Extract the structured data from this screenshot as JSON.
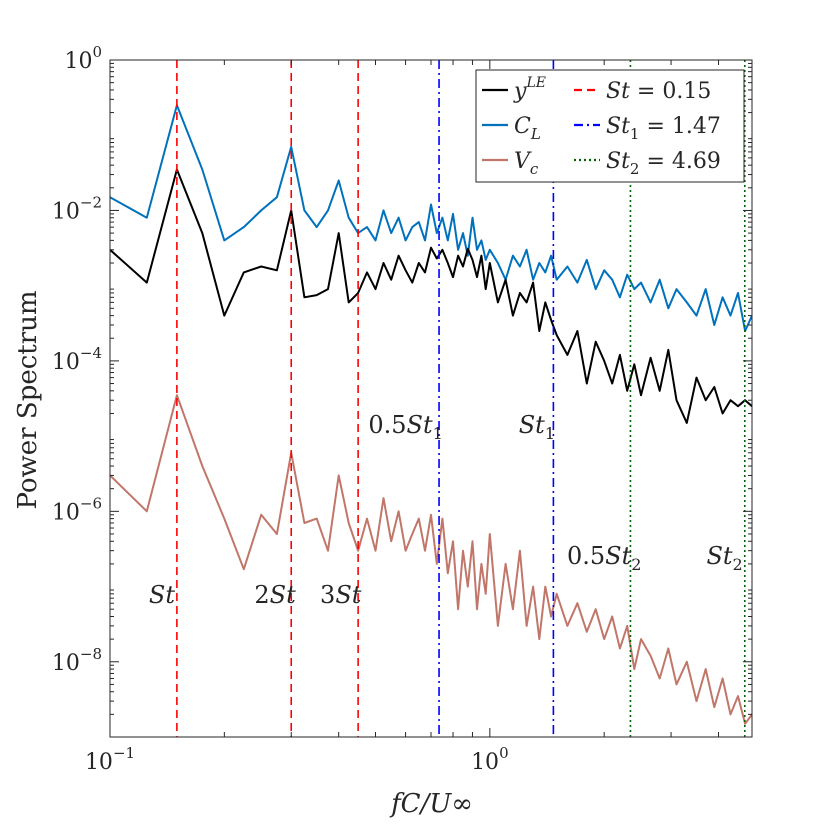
{
  "chart_data": {
    "type": "line",
    "xscale": "log",
    "yscale": "log",
    "xlim": [
      0.1,
      4.9
    ],
    "ylim": [
      1e-09,
      1
    ],
    "xlabel": "fC/U∞",
    "ylabel": "Power Spectrum",
    "xticks": [
      {
        "value": 0.1,
        "base": "10",
        "exp": "−1"
      },
      {
        "value": 1,
        "base": "10",
        "exp": "0"
      }
    ],
    "yticks": [
      {
        "value": 1,
        "base": "10",
        "exp": "0"
      },
      {
        "value": 0.01,
        "base": "10",
        "exp": "−2"
      },
      {
        "value": 0.0001,
        "base": "10",
        "exp": "−4"
      },
      {
        "value": 1e-06,
        "base": "10",
        "exp": "−6"
      },
      {
        "value": 1e-08,
        "base": "10",
        "exp": "−8"
      }
    ],
    "series": [
      {
        "name": "y^LE",
        "legend_main": "y",
        "legend_sup": "LE",
        "color": "#000000",
        "x": [
          0.1,
          0.125,
          0.15,
          0.175,
          0.2,
          0.225,
          0.25,
          0.275,
          0.3,
          0.325,
          0.35,
          0.375,
          0.4,
          0.425,
          0.45,
          0.475,
          0.5,
          0.525,
          0.55,
          0.575,
          0.6,
          0.625,
          0.65,
          0.675,
          0.7,
          0.725,
          0.75,
          0.775,
          0.8,
          0.825,
          0.85,
          0.875,
          0.9,
          0.925,
          0.95,
          0.975,
          1.0,
          1.05,
          1.1,
          1.15,
          1.2,
          1.25,
          1.3,
          1.35,
          1.4,
          1.45,
          1.5,
          1.6,
          1.7,
          1.8,
          1.9,
          2.0,
          2.1,
          2.2,
          2.3,
          2.4,
          2.5,
          2.65,
          2.8,
          2.95,
          3.1,
          3.3,
          3.5,
          3.7,
          3.9,
          4.1,
          4.3,
          4.5,
          4.7,
          4.9
        ],
        "y": [
          0.003,
          0.0011,
          0.035,
          0.005,
          0.0004,
          0.0015,
          0.0018,
          0.0016,
          0.01,
          0.0007,
          0.00075,
          0.0009,
          0.005,
          0.0006,
          0.0008,
          0.0015,
          0.0009,
          0.002,
          0.0012,
          0.0025,
          0.0016,
          0.0011,
          0.002,
          0.0015,
          0.0032,
          0.0023,
          0.003,
          0.002,
          0.0013,
          0.0025,
          0.0018,
          0.0031,
          0.0022,
          0.0013,
          0.0025,
          0.0009,
          0.002,
          0.0006,
          0.0012,
          0.0004,
          0.0008,
          0.0006,
          0.0011,
          0.00025,
          0.0006,
          0.00035,
          0.00022,
          0.00012,
          0.00025,
          5e-05,
          0.00018,
          0.0001,
          5e-05,
          0.00012,
          4e-05,
          9e-05,
          3.5e-05,
          0.00011,
          4e-05,
          0.00014,
          3e-05,
          1.5e-05,
          6e-05,
          3e-05,
          4.5e-05,
          2e-05,
          3e-05,
          2.5e-05,
          3e-05,
          2.5e-05
        ]
      },
      {
        "name": "C_L",
        "legend_main": "C",
        "legend_sub": "L",
        "color": "#0072BD",
        "x": [
          0.1,
          0.125,
          0.15,
          0.175,
          0.2,
          0.225,
          0.25,
          0.275,
          0.3,
          0.325,
          0.35,
          0.375,
          0.4,
          0.425,
          0.45,
          0.475,
          0.5,
          0.525,
          0.55,
          0.575,
          0.6,
          0.625,
          0.65,
          0.675,
          0.7,
          0.725,
          0.75,
          0.775,
          0.8,
          0.825,
          0.85,
          0.875,
          0.9,
          0.925,
          0.95,
          0.975,
          1.0,
          1.05,
          1.1,
          1.15,
          1.2,
          1.25,
          1.3,
          1.35,
          1.4,
          1.45,
          1.5,
          1.6,
          1.7,
          1.8,
          1.9,
          2.0,
          2.1,
          2.2,
          2.3,
          2.4,
          2.5,
          2.65,
          2.8,
          2.95,
          3.1,
          3.3,
          3.5,
          3.7,
          3.9,
          4.1,
          4.3,
          4.5,
          4.7,
          4.9
        ],
        "y": [
          0.015,
          0.008,
          0.25,
          0.035,
          0.004,
          0.006,
          0.01,
          0.015,
          0.07,
          0.01,
          0.006,
          0.01,
          0.025,
          0.008,
          0.005,
          0.006,
          0.004,
          0.01,
          0.005,
          0.008,
          0.004,
          0.006,
          0.007,
          0.004,
          0.012,
          0.005,
          0.008,
          0.004,
          0.009,
          0.003,
          0.005,
          0.0025,
          0.008,
          0.003,
          0.004,
          0.0022,
          0.003,
          0.002,
          0.0012,
          0.0025,
          0.0018,
          0.003,
          0.0012,
          0.002,
          0.0015,
          0.0025,
          0.0012,
          0.0018,
          0.0011,
          0.0022,
          0.0009,
          0.0016,
          0.0012,
          0.0007,
          0.0014,
          0.0009,
          0.0011,
          0.0006,
          0.0012,
          0.0005,
          0.0009,
          0.0006,
          0.0004,
          0.0009,
          0.0003,
          0.0007,
          0.0004,
          0.0008,
          0.00025,
          0.0004
        ]
      },
      {
        "name": "V_c",
        "legend_main": "V",
        "legend_sub": "c",
        "color": "#C1766A",
        "x": [
          0.1,
          0.125,
          0.15,
          0.175,
          0.2,
          0.225,
          0.25,
          0.275,
          0.3,
          0.325,
          0.35,
          0.375,
          0.4,
          0.425,
          0.45,
          0.475,
          0.5,
          0.525,
          0.55,
          0.575,
          0.6,
          0.625,
          0.65,
          0.675,
          0.7,
          0.725,
          0.75,
          0.775,
          0.8,
          0.825,
          0.85,
          0.875,
          0.9,
          0.925,
          0.95,
          0.975,
          1.0,
          1.05,
          1.1,
          1.15,
          1.2,
          1.25,
          1.3,
          1.35,
          1.4,
          1.45,
          1.5,
          1.6,
          1.7,
          1.8,
          1.9,
          2.0,
          2.1,
          2.2,
          2.3,
          2.4,
          2.5,
          2.65,
          2.8,
          2.95,
          3.1,
          3.3,
          3.5,
          3.7,
          3.9,
          4.1,
          4.3,
          4.5,
          4.7,
          4.9
        ],
        "y": [
          3e-06,
          1e-06,
          3.5e-05,
          4e-06,
          8e-07,
          1.7e-07,
          9e-07,
          5e-07,
          6e-06,
          7e-07,
          8e-07,
          3e-07,
          3e-06,
          7e-07,
          3e-07,
          8e-07,
          3e-07,
          1.5e-06,
          4e-07,
          1e-06,
          3e-07,
          5e-07,
          8e-07,
          3e-07,
          9e-07,
          2e-07,
          8e-07,
          1.5e-07,
          4e-07,
          5e-08,
          3e-07,
          1e-07,
          4e-07,
          5e-08,
          2e-07,
          8e-08,
          5e-07,
          3e-08,
          2e-07,
          5e-08,
          3e-07,
          3e-08,
          1e-07,
          2e-08,
          1e-07,
          4e-08,
          8e-08,
          3e-08,
          6e-08,
          2.5e-08,
          5e-08,
          2e-08,
          4e-08,
          1.5e-08,
          3e-08,
          8e-09,
          2e-08,
          1.2e-08,
          6e-09,
          1.5e-08,
          5e-09,
          1e-08,
          3e-09,
          8e-09,
          2.5e-09,
          6e-09,
          2e-09,
          3.5e-09,
          1.5e-09,
          2e-09
        ]
      }
    ],
    "vlines": [
      {
        "x": 0.15,
        "color": "#FF0000",
        "style": "dashed",
        "label_main": "St",
        "label_mult": "",
        "label_sub": "",
        "label_y": 6e-08,
        "label_x": 0.137
      },
      {
        "x": 0.3,
        "color": "#FF0000",
        "style": "dashed",
        "label_main": "St",
        "label_mult": "2",
        "label_sub": "",
        "label_y": 6e-08,
        "label_x": 0.272
      },
      {
        "x": 0.45,
        "color": "#FF0000",
        "style": "dashed",
        "label_main": "St",
        "label_mult": "3",
        "label_sub": "",
        "label_y": 6e-08,
        "label_x": 0.405
      },
      {
        "x": 0.735,
        "color": "#0000FF",
        "style": "dashdot",
        "label_main": "St",
        "label_mult": "0.5",
        "label_sub": "1",
        "label_y": 1.1e-05,
        "label_x": 0.6
      },
      {
        "x": 1.47,
        "color": "#0000FF",
        "style": "dashdot",
        "label_main": "St",
        "label_mult": "",
        "label_sub": "1",
        "label_y": 1.1e-05,
        "label_x": 1.33
      },
      {
        "x": 2.345,
        "color": "#006400",
        "style": "dotted",
        "label_main": "St",
        "label_mult": "0.5",
        "label_sub": "2",
        "label_y": 2e-07,
        "label_x": 2.0
      },
      {
        "x": 4.69,
        "color": "#006400",
        "style": "dotted",
        "label_main": "St",
        "label_mult": "",
        "label_sub": "2",
        "label_y": 2e-07,
        "label_x": 4.15
      }
    ],
    "legend": {
      "placement": "top-right",
      "entries": [
        {
          "main": "y",
          "sup": "LE",
          "sub": "",
          "rhs": "",
          "color": "#000000",
          "style": "solid"
        },
        {
          "main": "C",
          "sup": "",
          "sub": "L",
          "rhs": "",
          "color": "#0072BD",
          "style": "solid"
        },
        {
          "main": "V",
          "sup": "",
          "sub": "c",
          "rhs": "",
          "color": "#C1766A",
          "style": "solid"
        },
        {
          "main": "St",
          "sup": "",
          "sub": "",
          "rhs": " = 0.15",
          "color": "#FF0000",
          "style": "dashed"
        },
        {
          "main": "St",
          "sup": "",
          "sub": "1",
          "rhs": " = 1.47",
          "color": "#0000FF",
          "style": "dashdot"
        },
        {
          "main": "St",
          "sup": "",
          "sub": "2",
          "rhs": " = 4.69",
          "color": "#006400",
          "style": "dotted"
        }
      ]
    }
  }
}
